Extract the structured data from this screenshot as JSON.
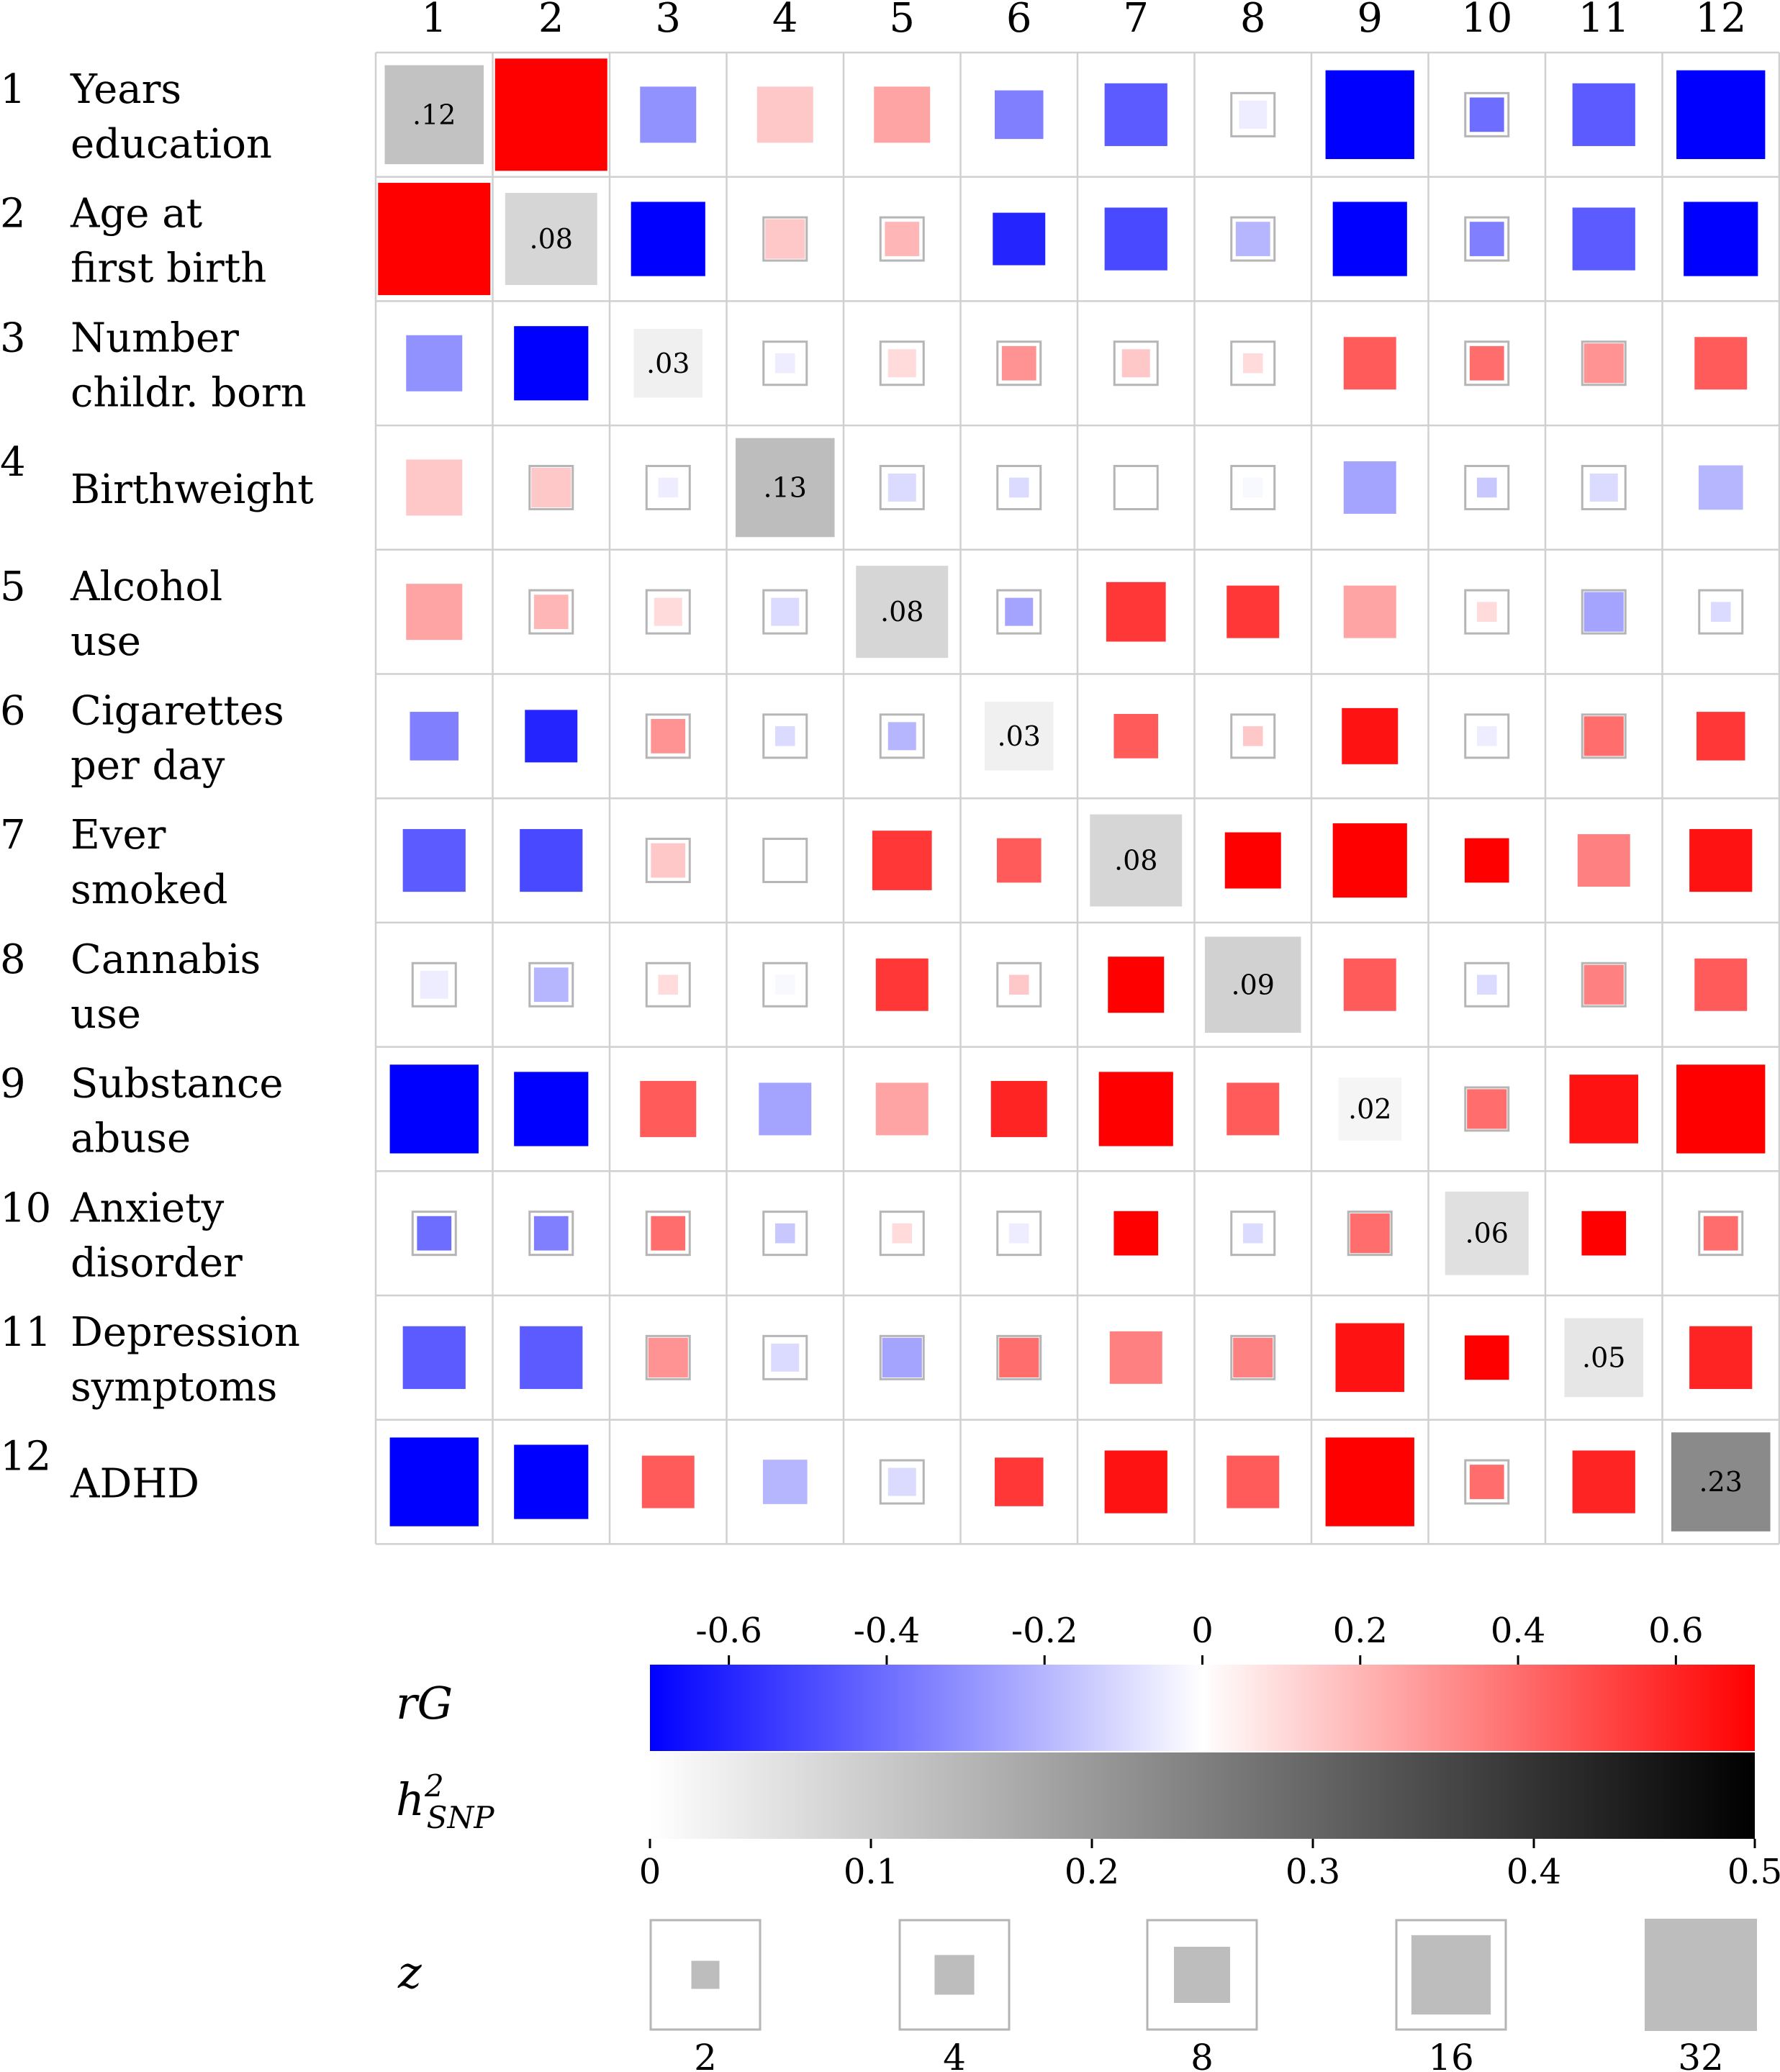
{
  "chart_data": {
    "type": "heatmap",
    "column_labels": [
      "1",
      "2",
      "3",
      "4",
      "5",
      "6",
      "7",
      "8",
      "9",
      "10",
      "11",
      "12"
    ],
    "rows": [
      {
        "index": "1",
        "name_line1": "Years",
        "name_line2": "education"
      },
      {
        "index": "2",
        "name_line1": "Age at",
        "name_line2": "first birth"
      },
      {
        "index": "3",
        "name_line1": "Number",
        "name_line2": "childr. born"
      },
      {
        "index": "4",
        "name_line1": "Birthweight",
        "name_line2": ""
      },
      {
        "index": "5",
        "name_line1": "Alcohol",
        "name_line2": "use"
      },
      {
        "index": "6",
        "name_line1": "Cigarettes",
        "name_line2": "per day"
      },
      {
        "index": "7",
        "name_line1": "Ever",
        "name_line2": "smoked"
      },
      {
        "index": "8",
        "name_line1": "Cannabis",
        "name_line2": "use"
      },
      {
        "index": "9",
        "name_line1": "Substance",
        "name_line2": "abuse"
      },
      {
        "index": "10",
        "name_line1": "Anxiety",
        "name_line2": "disorder"
      },
      {
        "index": "11",
        "name_line1": "Depression",
        "name_line2": "symptoms"
      },
      {
        "index": "12",
        "name_line1": "ADHD",
        "name_line2": ""
      }
    ],
    "diagonal_h2snp": [
      0.12,
      0.08,
      0.03,
      0.13,
      0.08,
      0.03,
      0.08,
      0.09,
      0.02,
      0.06,
      0.05,
      0.23
    ],
    "diagonal_labels": [
      ".12",
      ".08",
      ".03",
      ".13",
      ".08",
      ".03",
      ".08",
      ".09",
      ".02",
      ".06",
      ".05",
      ".23"
    ],
    "rG": [
      [
        null,
        0.7,
        -0.3,
        0.15,
        0.25,
        -0.35,
        -0.45,
        -0.05,
        -0.75,
        -0.4,
        -0.45,
        -0.7
      ],
      [
        0.7,
        null,
        -0.85,
        0.15,
        0.2,
        -0.6,
        -0.5,
        -0.2,
        -0.8,
        -0.35,
        -0.45,
        -0.85
      ],
      [
        -0.3,
        -0.85,
        null,
        -0.05,
        0.1,
        0.3,
        0.15,
        0.1,
        0.45,
        0.4,
        0.3,
        0.45
      ],
      [
        0.15,
        0.15,
        -0.05,
        null,
        -0.1,
        -0.1,
        0.0,
        -0.02,
        -0.25,
        -0.15,
        -0.1,
        -0.2
      ],
      [
        0.25,
        0.2,
        0.1,
        -0.1,
        null,
        -0.25,
        0.55,
        0.55,
        0.25,
        0.1,
        -0.25,
        -0.1
      ],
      [
        -0.35,
        -0.6,
        0.3,
        -0.1,
        -0.2,
        null,
        0.45,
        0.15,
        0.65,
        -0.05,
        0.4,
        0.55
      ],
      [
        -0.45,
        -0.5,
        0.15,
        0.0,
        0.55,
        0.45,
        null,
        0.95,
        0.8,
        0.75,
        0.35,
        0.65
      ],
      [
        -0.05,
        -0.2,
        0.1,
        -0.02,
        0.55,
        0.15,
        0.95,
        null,
        0.45,
        -0.1,
        0.35,
        0.45
      ],
      [
        -0.75,
        -0.8,
        0.45,
        -0.25,
        0.25,
        0.6,
        0.8,
        0.45,
        null,
        0.4,
        0.65,
        0.85
      ],
      [
        -0.4,
        -0.35,
        0.4,
        -0.15,
        0.1,
        -0.05,
        0.7,
        -0.1,
        0.4,
        null,
        0.9,
        0.4
      ],
      [
        -0.45,
        -0.45,
        0.3,
        -0.1,
        -0.25,
        0.4,
        0.35,
        0.35,
        0.65,
        0.9,
        null,
        0.6
      ],
      [
        -0.7,
        -0.85,
        0.45,
        -0.2,
        -0.1,
        0.55,
        0.65,
        0.45,
        0.85,
        0.4,
        0.6,
        null
      ]
    ],
    "z": [
      [
        null,
        32,
        8,
        8,
        8,
        6,
        10,
        2,
        20,
        3,
        10,
        20
      ],
      [
        32,
        null,
        14,
        4,
        3,
        7,
        10,
        3,
        14,
        3,
        10,
        14
      ],
      [
        8,
        14,
        null,
        1,
        2,
        3,
        2,
        1,
        7,
        3,
        4,
        7
      ],
      [
        8,
        4,
        1,
        null,
        2,
        1,
        1,
        1,
        7,
        1,
        2,
        5
      ],
      [
        8,
        3,
        2,
        2,
        null,
        2,
        9,
        7,
        7,
        1,
        4,
        1
      ],
      [
        6,
        7,
        3,
        1,
        2,
        null,
        5,
        1,
        8,
        1,
        4,
        6
      ],
      [
        10,
        10,
        3,
        1,
        9,
        5,
        null,
        8,
        14,
        5,
        7,
        10
      ],
      [
        2,
        3,
        1,
        1,
        7,
        1,
        8,
        null,
        7,
        1,
        4,
        7
      ],
      [
        20,
        14,
        8,
        7,
        7,
        8,
        14,
        7,
        null,
        4,
        12,
        20
      ],
      [
        3,
        3,
        3,
        1,
        1,
        1,
        5,
        1,
        4,
        null,
        5,
        3
      ],
      [
        10,
        10,
        4,
        2,
        4,
        4,
        7,
        4,
        12,
        5,
        null,
        10
      ],
      [
        20,
        14,
        7,
        5,
        2,
        6,
        10,
        7,
        20,
        3,
        10,
        null
      ]
    ],
    "rG_colorbar": {
      "label_main": "rG",
      "ticks": [
        "-0.6",
        "-0.4",
        "-0.2",
        "0",
        "0.2",
        "0.4",
        "0.6"
      ],
      "tick_values": [
        -0.6,
        -0.4,
        -0.2,
        0,
        0.2,
        0.4,
        0.6
      ],
      "range": [
        -0.7,
        0.7
      ],
      "color_negative": "#0000ff",
      "color_zero": "#ffffff",
      "color_positive": "#ff0000"
    },
    "h2_colorbar": {
      "label_main": "h",
      "label_sup": "2",
      "label_sub": "SNP",
      "ticks": [
        "0",
        "0.1",
        "0.2",
        "0.3",
        "0.4",
        "0.5"
      ],
      "tick_values": [
        0,
        0.1,
        0.2,
        0.3,
        0.4,
        0.5
      ],
      "range": [
        0,
        0.5
      ],
      "color_low": "#ffffff",
      "color_high": "#000000"
    },
    "z_legend": {
      "label": "z",
      "values": [
        2,
        4,
        8,
        16,
        32
      ],
      "value_labels": [
        "2",
        "4",
        "8",
        "16",
        "32"
      ],
      "swatch_color": "#bdbdbd"
    }
  }
}
